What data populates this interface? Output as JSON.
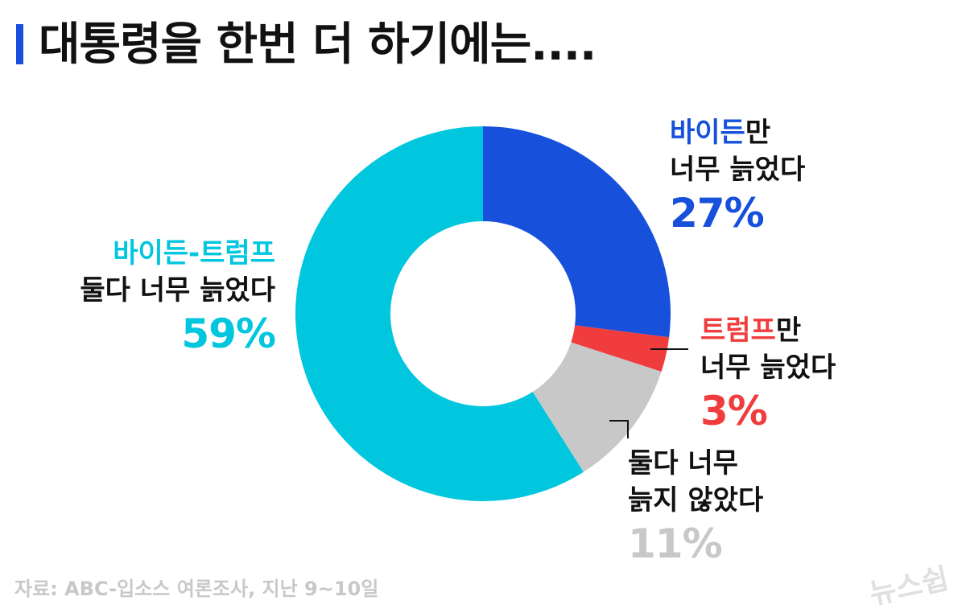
{
  "title": "대통령을 한번 더 하기에는....",
  "source": "자료: ABC-입소스 여론조사, 지난 9~10일",
  "logo": "뉴스쉽",
  "colors": {
    "title_bar": "#1650db",
    "biden": "#1650db",
    "trump": "#f03c3c",
    "neither": "#c8c8c8",
    "both": "#00c6de"
  },
  "labels": {
    "biden": {
      "highlight": "바이든",
      "rest": "만",
      "line2": "너무 늙었다",
      "pct": "27%"
    },
    "trump": {
      "highlight": "트럼프",
      "rest": "만",
      "line2": "너무 늙었다",
      "pct": "3%"
    },
    "neither": {
      "line1": "둘다 너무",
      "line2": "늙지 않았다",
      "pct": "11%"
    },
    "both": {
      "highlight": "바이든-트럼프",
      "line2": "둘다 너무 늙었다",
      "pct": "59%"
    }
  },
  "chart_data": {
    "type": "pie",
    "title": "대통령을 한번 더 하기에는....",
    "categories": [
      "바이든만 너무 늙었다",
      "트럼프만 너무 늙었다",
      "둘다 너무 늙지 않았다",
      "바이든-트럼프 둘다 너무 늙었다"
    ],
    "values": [
      27,
      3,
      11,
      59
    ],
    "unit": "%",
    "colors": [
      "#1650db",
      "#f03c3c",
      "#c8c8c8",
      "#00c6de"
    ],
    "donut": true,
    "start_angle_deg": 0,
    "direction": "clockwise"
  }
}
